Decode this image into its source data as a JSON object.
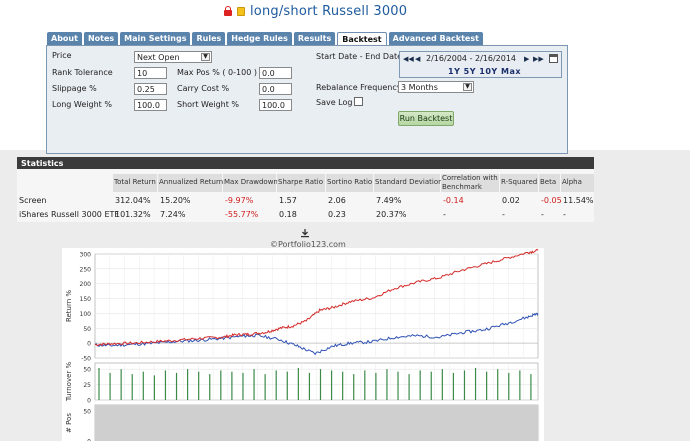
{
  "header": {
    "title": "long/short Russell 3000"
  },
  "tabs": [
    "About",
    "Notes",
    "Main Settings",
    "Rules",
    "Hedge Rules",
    "Results",
    "Backtest",
    "Advanced Backtest"
  ],
  "active_tab": "Backtest",
  "settings": {
    "price_label": "Price",
    "price_value": "Next Open",
    "rank_tolerance_label": "Rank Tolerance",
    "rank_tolerance_value": "10",
    "slippage_label": "Slippage %",
    "slippage_value": "0.25",
    "long_weight_label": "Long Weight %",
    "long_weight_value": "100.0",
    "max_pos_label": "Max Pos % ( 0-100 )",
    "max_pos_value": "0.0",
    "carry_cost_label": "Carry Cost %",
    "carry_cost_value": "0.0",
    "short_weight_label": "Short Weight %",
    "short_weight_value": "100.0",
    "date_label": "Start Date - End Date",
    "date_range": "2/16/2004 - 2/16/2014",
    "range_links": "1Y  5Y  10Y  Max",
    "rebalance_label": "Rebalance Frequency",
    "rebalance_value": "3 Months",
    "save_log_label": "Save Log",
    "run_button": "Run Backtest"
  },
  "statistics": {
    "title": "Statistics",
    "columns": [
      "Total Return",
      "Annualized Return",
      "Max Drawdown",
      "Sharpe Ratio",
      "Sortino Ratio",
      "Standard Deviation",
      "Correlation with Benchmark",
      "R-Squared",
      "Beta",
      "Alpha"
    ],
    "rows": [
      {
        "name": "Screen",
        "values": [
          "312.04%",
          "15.20%",
          "-9.97%",
          "1.57",
          "2.06",
          "7.49%",
          "-0.14",
          "0.02",
          "-0.05",
          "11.54%"
        ]
      },
      {
        "name": "iShares Russell 3000 ETF",
        "values": [
          "101.32%",
          "7.24%",
          "-55.77%",
          "0.18",
          "0.23",
          "20.37%",
          "-",
          "-",
          "-",
          "-"
        ]
      }
    ]
  },
  "chart_credit": "©Portfolio123.com",
  "colors": {
    "screen": "#d42a2a",
    "benchmark": "#2f52b4",
    "turnover": "#3c8a48",
    "positions": "#cfcfcf"
  },
  "chart_data": {
    "type": "line",
    "panels": [
      {
        "ylabel": "Return %",
        "ylim": [
          -50,
          300
        ],
        "yticks": [
          -50,
          0,
          50,
          100,
          150,
          200,
          250,
          300
        ]
      },
      {
        "ylabel": "Turnover %",
        "ylim": [
          0,
          60
        ],
        "yticks": [
          0,
          25,
          50
        ]
      },
      {
        "ylabel": "# Pos",
        "ylim": [
          0,
          60
        ],
        "yticks": [
          0,
          50
        ]
      }
    ],
    "x_start": 2004.13,
    "x_end": 2014.13,
    "series": [
      {
        "name": "Screen",
        "x": [
          2004.13,
          2004.5,
          2005.0,
          2005.5,
          2006.0,
          2006.5,
          2007.0,
          2007.3,
          2007.6,
          2008.0,
          2008.3,
          2008.6,
          2008.9,
          2009.2,
          2009.5,
          2009.9,
          2010.4,
          2010.9,
          2011.4,
          2011.9,
          2012.4,
          2012.9,
          2013.4,
          2013.9,
          2014.13
        ],
        "values": [
          -5,
          -2,
          0,
          5,
          10,
          16,
          20,
          28,
          30,
          37,
          50,
          58,
          75,
          110,
          120,
          140,
          152,
          185,
          205,
          220,
          245,
          265,
          285,
          305,
          312
        ]
      },
      {
        "name": "iShares Russell 3000 ETF",
        "x": [
          2004.13,
          2004.5,
          2005.0,
          2005.5,
          2006.0,
          2006.5,
          2007.0,
          2007.5,
          2007.8,
          2008.3,
          2008.7,
          2009.1,
          2009.5,
          2009.9,
          2010.4,
          2010.9,
          2011.4,
          2011.9,
          2012.4,
          2012.9,
          2013.4,
          2013.9,
          2014.13
        ],
        "values": [
          -6,
          -8,
          -4,
          0,
          6,
          10,
          16,
          24,
          26,
          12,
          -10,
          -35,
          -10,
          0,
          5,
          20,
          25,
          20,
          35,
          45,
          65,
          88,
          101
        ]
      }
    ],
    "turnover": {
      "x": [
        2004.13,
        2004.38,
        2004.63,
        2004.88,
        2005.13,
        2005.38,
        2005.63,
        2005.88,
        2006.13,
        2006.38,
        2006.63,
        2006.88,
        2007.13,
        2007.38,
        2007.63,
        2007.88,
        2008.13,
        2008.38,
        2008.63,
        2008.88,
        2009.13,
        2009.38,
        2009.63,
        2009.88,
        2010.13,
        2010.38,
        2010.63,
        2010.88,
        2011.13,
        2011.38,
        2011.63,
        2011.88,
        2012.13,
        2012.38,
        2012.63,
        2012.88,
        2013.13,
        2013.38,
        2013.63,
        2013.88
      ],
      "values": [
        52,
        44,
        50,
        42,
        46,
        40,
        48,
        44,
        50,
        46,
        42,
        48,
        46,
        44,
        50,
        42,
        48,
        46,
        52,
        44,
        50,
        48,
        46,
        42,
        48,
        44,
        50,
        46,
        42,
        48,
        46,
        50,
        44,
        48,
        52,
        46,
        50,
        44,
        48,
        42
      ]
    },
    "positions": {
      "x_start": 2004.13,
      "x_end": 2014.13,
      "value": 60
    },
    "x_ticks_note": "no x tick labels visible"
  }
}
